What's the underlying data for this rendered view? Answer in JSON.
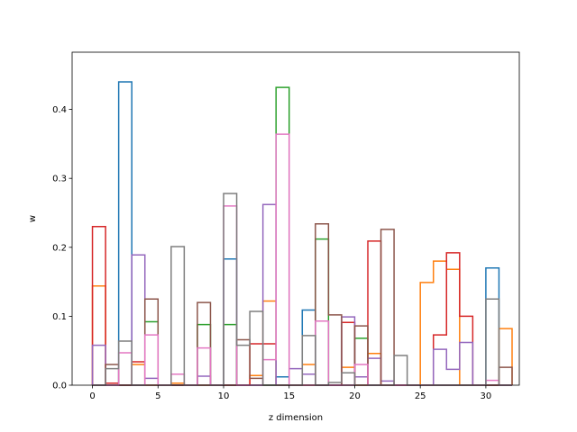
{
  "chart_data": {
    "type": "step-histogram",
    "title": "",
    "xlabel": "z dimension",
    "ylabel": "w",
    "xlim": [
      -1.55,
      32.55
    ],
    "ylim": [
      0,
      0.483
    ],
    "xticks": [
      0,
      5,
      10,
      15,
      20,
      25,
      30
    ],
    "yticks": [
      0.0,
      0.1,
      0.2,
      0.3,
      0.4
    ],
    "ytick_labels": [
      "0.0",
      "0.1",
      "0.2",
      "0.3",
      "0.4"
    ],
    "legend": "none",
    "grid": false,
    "bins": 32,
    "series": [
      {
        "color": "#1f77b4",
        "values": [
          0,
          0,
          0.44,
          0,
          0,
          0,
          0,
          0,
          0,
          0,
          0.183,
          0,
          0,
          0,
          0.012,
          0,
          0.109,
          0,
          0,
          0,
          0,
          0,
          0,
          0,
          0,
          0,
          0,
          0,
          0,
          0,
          0.17,
          0
        ]
      },
      {
        "color": "#ff7f0e",
        "values": [
          0.144,
          0,
          0,
          0.03,
          0,
          0,
          0.003,
          0,
          0,
          0,
          0,
          0,
          0.014,
          0.122,
          0,
          0,
          0.03,
          0,
          0,
          0.026,
          0,
          0.046,
          0,
          0,
          0,
          0.149,
          0.18,
          0.168,
          0,
          0,
          0,
          0.082
        ]
      },
      {
        "color": "#2ca02c",
        "values": [
          0,
          0,
          0,
          0,
          0.092,
          0,
          0,
          0,
          0.088,
          0,
          0.088,
          0,
          0,
          0,
          0.432,
          0,
          0,
          0.212,
          0,
          0,
          0.068,
          0,
          0,
          0,
          0,
          0,
          0,
          0,
          0,
          0,
          0,
          0
        ]
      },
      {
        "color": "#d62728",
        "values": [
          0.23,
          0.003,
          0,
          0.034,
          0,
          0,
          0,
          0,
          0,
          0,
          0,
          0,
          0.06,
          0.06,
          0,
          0,
          0,
          0,
          0,
          0.091,
          0,
          0.209,
          0,
          0,
          0,
          0,
          0.073,
          0.192,
          0.1,
          0,
          0,
          0
        ]
      },
      {
        "color": "#9467bd",
        "values": [
          0.058,
          0,
          0,
          0.189,
          0.01,
          0,
          0,
          0,
          0.013,
          0,
          0,
          0,
          0,
          0.262,
          0,
          0.024,
          0.016,
          0,
          0,
          0.099,
          0.012,
          0.039,
          0.006,
          0,
          0,
          0,
          0.052,
          0.023,
          0.062,
          0,
          0,
          0
        ]
      },
      {
        "color": "#8c564b",
        "values": [
          0,
          0.03,
          0,
          0,
          0.125,
          0,
          0,
          0,
          0.12,
          0,
          0,
          0.066,
          0.01,
          0,
          0,
          0,
          0,
          0.234,
          0.102,
          0,
          0.086,
          0,
          0.226,
          0,
          0,
          0,
          0,
          0,
          0,
          0,
          0,
          0.026
        ]
      },
      {
        "color": "#e377c2",
        "values": [
          0,
          0,
          0.047,
          0,
          0.073,
          0,
          0.016,
          0,
          0.054,
          0,
          0.26,
          0,
          0,
          0.037,
          0.364,
          0,
          0,
          0.093,
          0,
          0,
          0.03,
          0,
          0,
          0,
          0,
          0,
          0,
          0,
          0,
          0,
          0.007,
          0
        ]
      },
      {
        "color": "#7f7f7f",
        "values": [
          0,
          0.024,
          0.064,
          0,
          0,
          0,
          0.201,
          0,
          0,
          0,
          0.278,
          0.058,
          0.107,
          0,
          0,
          0,
          0.072,
          0,
          0.004,
          0.018,
          0,
          0,
          0,
          0.043,
          0,
          0,
          0,
          0,
          0,
          0,
          0.125,
          0
        ]
      }
    ]
  }
}
